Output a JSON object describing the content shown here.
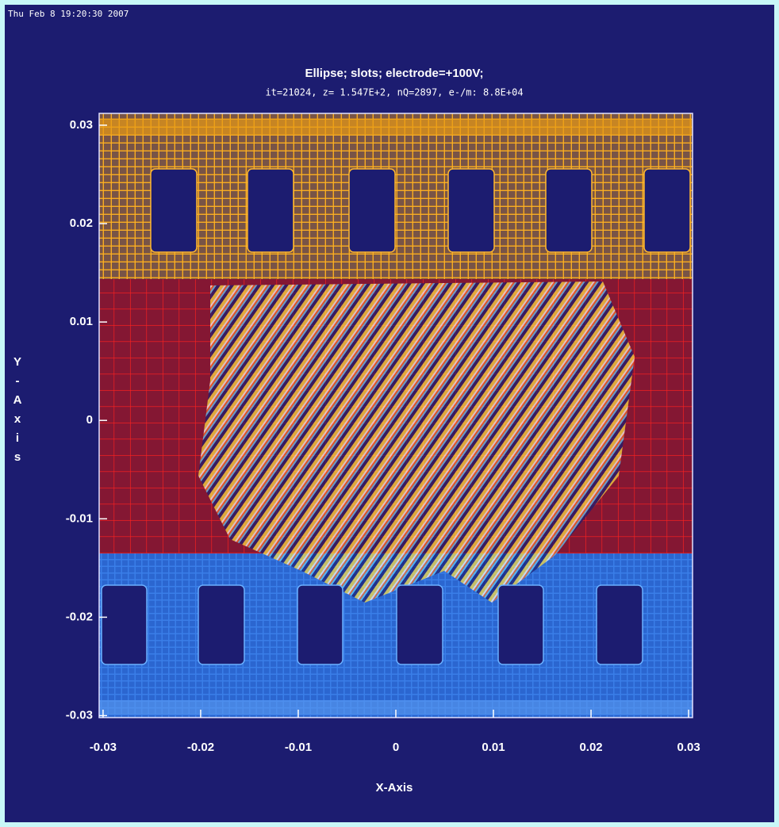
{
  "date": "Thu Feb  8 19:20:30 2007",
  "chart_data": {
    "type": "mesh",
    "title": "Ellipse; slots; electrode=+100V;",
    "subtitle": "it=21024, z= 1.547E+2, nQ=2897, e-/m: 8.8E+04",
    "x_label": "X-Axis",
    "y_label": "Y-Axis",
    "xlim": [
      -0.0304,
      0.0304
    ],
    "ylim": [
      -0.0302,
      0.0312
    ],
    "xticks": [
      -0.03,
      -0.02,
      -0.01,
      0,
      0.01,
      0.02,
      0.03
    ],
    "yticks": [
      -0.03,
      -0.02,
      -0.01,
      0,
      0.01,
      0.02,
      0.03
    ]
  }
}
